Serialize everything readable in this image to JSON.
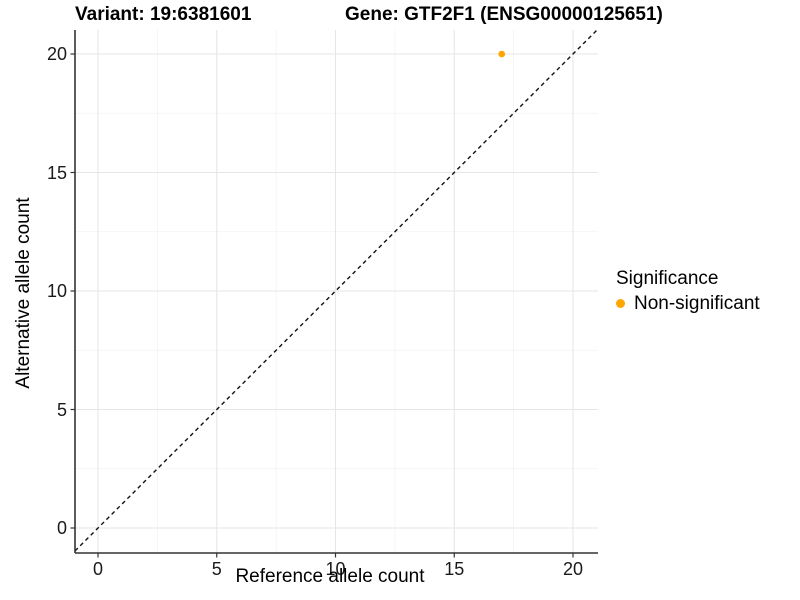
{
  "title": {
    "variant": "Variant: 19:6381601",
    "gene": "Gene: GTF2F1 (ENSG00000125651)"
  },
  "chart_data": {
    "type": "scatter",
    "title": "Variant: 19:6381601   Gene: GTF2F1 (ENSG00000125651)",
    "xlabel": "Reference allele count",
    "ylabel": "Alternative allele count",
    "xlim": [
      -1,
      21
    ],
    "ylim": [
      -1,
      21
    ],
    "x_ticks": [
      0,
      5,
      10,
      15,
      20
    ],
    "y_ticks": [
      0,
      5,
      10,
      15,
      20
    ],
    "grid": "major and minor gridlines on white background",
    "points": [
      {
        "x": 17,
        "y": 20,
        "series": "Non-significant",
        "color": "#FFA500"
      }
    ],
    "reference_line": {
      "type": "identity y=x",
      "style": "dashed",
      "color": "#111111"
    },
    "legend": {
      "title": "Significance",
      "position": "right",
      "entries": [
        {
          "label": "Non-significant",
          "color": "#FFA500",
          "marker": "circle"
        }
      ]
    },
    "colors": {
      "point": "#FFA500",
      "grid_major": "#E6E6E6",
      "grid_minor": "#F2F2F2",
      "axis": "#333333",
      "dashed_line": "#111111",
      "background": "#FFFFFF"
    }
  }
}
